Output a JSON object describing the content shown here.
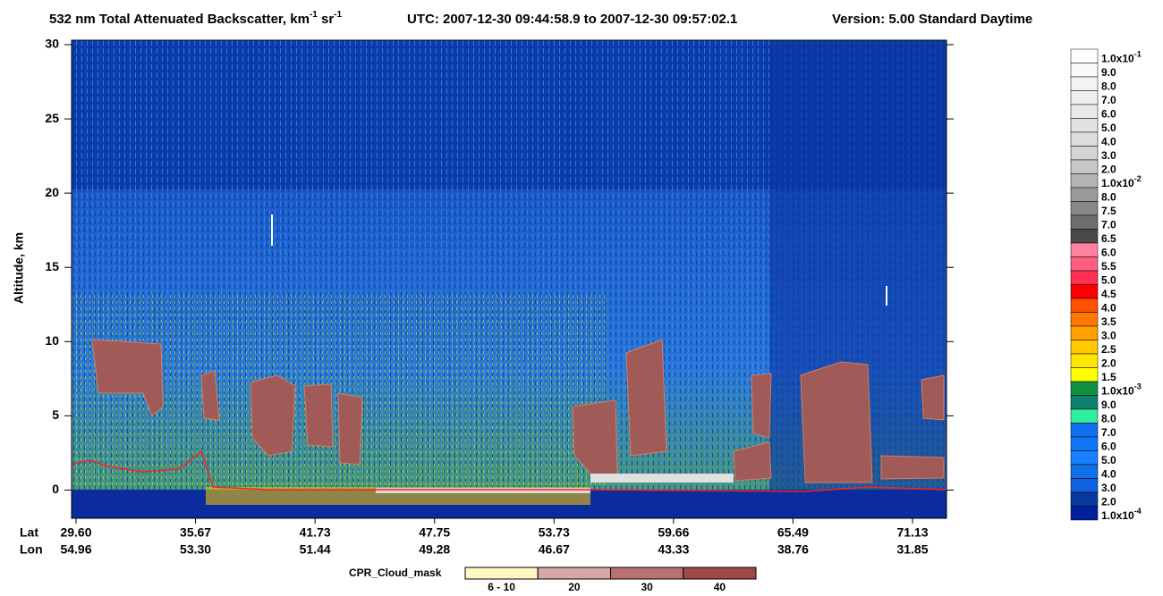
{
  "chart_data": {
    "type": "curtain",
    "title_parts": [
      "532 nm Total Attenuated Backscatter, km",
      "-1",
      " sr",
      "-1"
    ],
    "utc": "UTC:  2007-12-30 09:44:58.9  to  2007-12-30 09:57:02.1",
    "version": "Version: 5.00  Standard  Daytime",
    "y_label": "Altitude, km",
    "ylim": [
      -1.9,
      30.3
    ],
    "yticks": [
      0,
      5,
      10,
      15,
      20,
      25,
      30
    ],
    "x_rows": [
      {
        "name": "Lat",
        "labels": [
          "29.60",
          "35.67",
          "41.73",
          "47.75",
          "53.73",
          "59.66",
          "65.49",
          "71.13"
        ]
      },
      {
        "name": "Lon",
        "labels": [
          "54.96",
          "53.30",
          "51.44",
          "49.28",
          "46.67",
          "43.33",
          "38.76",
          "31.85"
        ]
      }
    ],
    "colorbar": {
      "labels": [
        {
          "text": "1.0x10",
          "sup": "-1"
        },
        "9.0",
        "8.0",
        "7.0",
        "6.0",
        "5.0",
        "4.0",
        "3.0",
        "2.0",
        {
          "text": "1.0x10",
          "sup": "-2"
        },
        "8.0",
        "7.5",
        "7.0",
        "6.5",
        "6.0",
        "5.5",
        "5.0",
        "4.5",
        "4.0",
        "3.5",
        "3.0",
        "2.5",
        "2.0",
        "1.5",
        {
          "text": "1.0x10",
          "sup": "-3"
        },
        "9.0",
        "8.0",
        "7.0",
        "6.0",
        "5.0",
        "4.0",
        "3.0",
        "2.0",
        {
          "text": "1.0x10",
          "sup": "-4"
        }
      ],
      "colors": [
        "#ffffff",
        "#fafafa",
        "#f4f4f4",
        "#eeeeee",
        "#e8e8e8",
        "#e2e2e2",
        "#dcdcdc",
        "#d4d4d4",
        "#c8c8c8",
        "#b4b4b4",
        "#9a9a9a",
        "#888888",
        "#6e6e6e",
        "#4a4a4a",
        "#ff80a0",
        "#ff6080",
        "#ff3050",
        "#ff0000",
        "#ff5000",
        "#ff7800",
        "#ffa000",
        "#ffc800",
        "#ffe600",
        "#ffff00",
        "#109040",
        "#108070",
        "#30f0a0",
        "#1070f0",
        "#1078f8",
        "#1880ff",
        "#1070e8",
        "#1060e0",
        "#0838a0",
        "#0020a0"
      ]
    },
    "cloud_mask": {
      "title": "CPR_Cloud_mask",
      "labels": [
        "6 - 10",
        "20",
        "30",
        "40"
      ],
      "colors": [
        "#fff8c0",
        "#d8a8a8",
        "#b87070",
        "#a04848"
      ]
    }
  }
}
